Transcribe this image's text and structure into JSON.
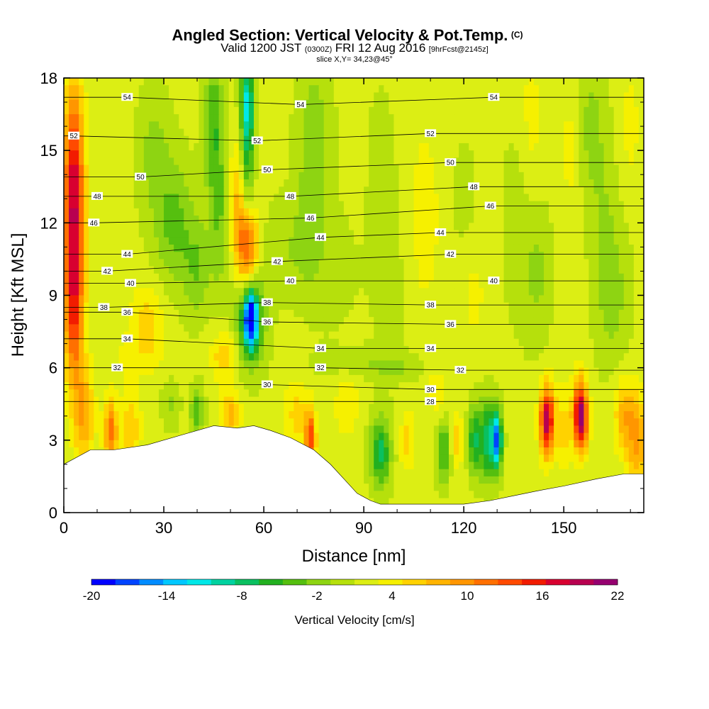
{
  "chart_data": {
    "type": "heatmap",
    "title": {
      "main": "Angled Section: Vertical Velocity & Pot.Temp.",
      "main_suffix": "(C)",
      "valid_a": "Valid 1200 JST",
      "valid_b": "(0300Z)",
      "valid_c": "FRI 12 Aug 2016",
      "valid_d": "[9hrFcst@2145z]",
      "slice": "slice X,Y= 34,23@45°"
    },
    "xlabel": "Distance [nm]",
    "ylabel": "Height [Kft MSL]",
    "xlim": [
      0,
      174
    ],
    "ylim": [
      0,
      18
    ],
    "xticks": [
      "0",
      "30",
      "60",
      "90",
      "120",
      "150"
    ],
    "yticks": [
      "0",
      "3",
      "6",
      "9",
      "12",
      "15",
      "18"
    ],
    "colorbar": {
      "label": "Vertical Velocity [cm/s]",
      "min": -20,
      "max": 22,
      "tick_labels": [
        "-20",
        "-14",
        "-8",
        "-2",
        "4",
        "10",
        "16",
        "22"
      ],
      "colors": [
        "#0000ff",
        "#0044ff",
        "#008cff",
        "#00c8ff",
        "#00e8e8",
        "#00d2a0",
        "#0ac060",
        "#22b020",
        "#55bf0f",
        "#8ed412",
        "#b6e00c",
        "#dcee14",
        "#f6f000",
        "#ffd200",
        "#ffb400",
        "#ff9600",
        "#ff7000",
        "#ff4a00",
        "#f21c00",
        "#d80030",
        "#b80050",
        "#960070",
        "#6a0090"
      ]
    },
    "terrain_kft": [
      [
        0,
        2.0
      ],
      [
        8,
        2.6
      ],
      [
        15,
        2.6
      ],
      [
        25,
        2.8
      ],
      [
        35,
        3.2
      ],
      [
        45,
        3.6
      ],
      [
        52,
        3.5
      ],
      [
        57,
        3.6
      ],
      [
        62,
        3.4
      ],
      [
        68,
        3.1
      ],
      [
        75,
        2.6
      ],
      [
        80,
        2.0
      ],
      [
        84,
        1.4
      ],
      [
        88,
        0.8
      ],
      [
        92,
        0.5
      ],
      [
        95,
        0.35
      ],
      [
        100,
        0.35
      ],
      [
        110,
        0.35
      ],
      [
        120,
        0.35
      ],
      [
        128,
        0.5
      ],
      [
        135,
        0.7
      ],
      [
        142,
        0.9
      ],
      [
        150,
        1.1
      ],
      [
        160,
        1.4
      ],
      [
        168,
        1.6
      ],
      [
        174,
        1.6
      ]
    ],
    "isentrope_labels": [
      {
        "text": "54",
        "x": 19,
        "y": 17.2
      },
      {
        "text": "54",
        "x": 71,
        "y": 16.9
      },
      {
        "text": "54",
        "x": 129,
        "y": 17.2
      },
      {
        "text": "52",
        "x": 3,
        "y": 15.6
      },
      {
        "text": "52",
        "x": 58,
        "y": 15.4
      },
      {
        "text": "52",
        "x": 110,
        "y": 15.7
      },
      {
        "text": "50",
        "x": 23,
        "y": 13.9
      },
      {
        "text": "50",
        "x": 61,
        "y": 14.2
      },
      {
        "text": "50",
        "x": 116,
        "y": 14.5
      },
      {
        "text": "48",
        "x": 10,
        "y": 13.1
      },
      {
        "text": "48",
        "x": 68,
        "y": 13.1
      },
      {
        "text": "48",
        "x": 123,
        "y": 13.5
      },
      {
        "text": "46",
        "x": 9,
        "y": 12.0
      },
      {
        "text": "46",
        "x": 74,
        "y": 12.2
      },
      {
        "text": "46",
        "x": 128,
        "y": 12.7
      },
      {
        "text": "44",
        "x": 19,
        "y": 10.7
      },
      {
        "text": "44",
        "x": 77,
        "y": 11.4
      },
      {
        "text": "44",
        "x": 113,
        "y": 11.6
      },
      {
        "text": "42",
        "x": 13,
        "y": 10.0
      },
      {
        "text": "42",
        "x": 64,
        "y": 10.4
      },
      {
        "text": "42",
        "x": 116,
        "y": 10.7
      },
      {
        "text": "40",
        "x": 20,
        "y": 9.5
      },
      {
        "text": "40",
        "x": 68,
        "y": 9.6
      },
      {
        "text": "40",
        "x": 129,
        "y": 9.6
      },
      {
        "text": "38",
        "x": 12,
        "y": 8.5
      },
      {
        "text": "38",
        "x": 61,
        "y": 8.7
      },
      {
        "text": "38",
        "x": 110,
        "y": 8.6
      },
      {
        "text": "36",
        "x": 19,
        "y": 8.3
      },
      {
        "text": "36",
        "x": 61,
        "y": 7.9
      },
      {
        "text": "36",
        "x": 116,
        "y": 7.8
      },
      {
        "text": "34",
        "x": 19,
        "y": 7.2
      },
      {
        "text": "34",
        "x": 77,
        "y": 6.8
      },
      {
        "text": "34",
        "x": 110,
        "y": 6.8
      },
      {
        "text": "32",
        "x": 16,
        "y": 6.0
      },
      {
        "text": "32",
        "x": 77,
        "y": 6.0
      },
      {
        "text": "32",
        "x": 119,
        "y": 5.9
      },
      {
        "text": "30",
        "x": 61,
        "y": 5.3
      },
      {
        "text": "30",
        "x": 110,
        "y": 5.1
      },
      {
        "text": "28",
        "x": 110,
        "y": 4.6
      }
    ]
  }
}
